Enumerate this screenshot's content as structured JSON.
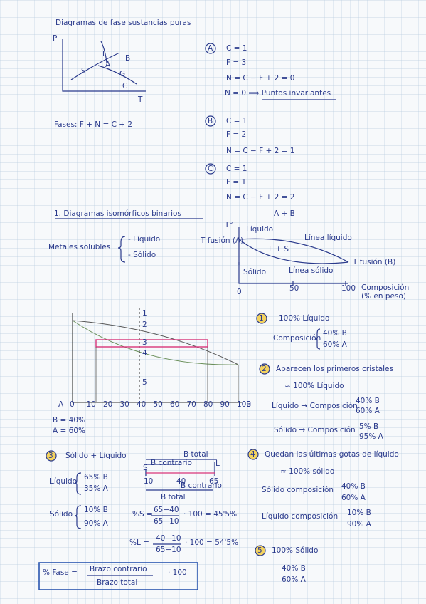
{
  "title": "Diagramas de fase sustancias puras",
  "phase_diagram": {
    "p": "P",
    "t": "T",
    "l": "L",
    "b": "B",
    "a": "A",
    "s": "S",
    "g": "G",
    "c": "C"
  },
  "point_a": {
    "marker": "A",
    "lines": [
      "C = 1",
      "F = 3",
      "N = C − F + 2 = 0",
      "N = 0 ⟹ Puntos invariantes"
    ]
  },
  "phases_rule": "Fases: F + N = C + 2",
  "point_b": {
    "marker": "B",
    "lines": [
      "C = 1",
      "F = 2",
      "N = C − F + 2 = 1"
    ]
  },
  "point_c": {
    "marker": "C",
    "lines": [
      "C = 1",
      "F = 1",
      "N = C − F + 2 = 2"
    ]
  },
  "section": "1. Diagramas isomórficos binarios",
  "metals": {
    "label": "Metales solubles",
    "items": [
      "- Líquido",
      "- Sólido"
    ]
  },
  "binary_diagram": {
    "system": "A + B",
    "t_axis": "T°",
    "liquid": "Líquido",
    "tf_a": "T fusión (A)",
    "liquid_line": "Línea líquido",
    "two_phase": "L + S",
    "solid": "Sólido",
    "solid_line": "Línea sólido",
    "tf_b": "T fusión (B)",
    "x_ticks": [
      "0",
      "50",
      "100"
    ],
    "x_label": "Composición",
    "x_unit": "(% en peso)"
  },
  "cooling_diagram": {
    "points": [
      "1",
      "2",
      "3",
      "4",
      "5"
    ],
    "axis_start": "A",
    "x_ticks": [
      "0",
      "10",
      "20",
      "30",
      "40",
      "50",
      "60",
      "70",
      "80",
      "90",
      "100"
    ],
    "axis_end": "B",
    "comp": [
      "B = 40%",
      "A = 60%"
    ]
  },
  "step1": {
    "marker": "1",
    "text": "100% Líquido",
    "label": "Composición",
    "comp": [
      "40% B",
      "60% A"
    ]
  },
  "step2": {
    "marker": "2",
    "text": "Aparecen los primeros cristales",
    "sub": "≈ 100% Líquido",
    "liquid": "Líquido → Composición",
    "liquid_comp": [
      "40% B",
      "60% A"
    ],
    "solid": "Sólido → Composición",
    "solid_comp": [
      "5% B",
      "95% A"
    ]
  },
  "step3": {
    "marker": "3",
    "text": "Sólido + Líquido",
    "lever": {
      "total_top": "B total",
      "contrary_top": "B contrario",
      "s": "S",
      "l": "L",
      "ticks": [
        "10",
        "40",
        "65"
      ],
      "contrary_bottom": "B contrario",
      "total_bottom": "B total"
    },
    "liquid": "Líquido",
    "liquid_comp": [
      "65% B",
      "35% A"
    ],
    "solid": "Sólido",
    "solid_comp": [
      "10% B",
      "90% A"
    ],
    "s_calc": {
      "lhs": "%S =",
      "num": "65−40",
      "den": "65−10",
      "rhs": "· 100 = 45'5%"
    },
    "l_calc": {
      "lhs": "%L =",
      "num": "40−10",
      "den": "65−10",
      "rhs": "· 100 = 54'5%"
    }
  },
  "step4": {
    "marker": "4",
    "text": "Quedan las últimas gotas de líquido",
    "sub": "≈ 100% sólido",
    "solid": "Sólido composición",
    "solid_comp": [
      "40% B",
      "60% A"
    ],
    "liquid": "Líquido composición",
    "liquid_comp": [
      "10% B",
      "90% A"
    ]
  },
  "step5": {
    "marker": "5",
    "text": "100% Sólido",
    "comp": [
      "40% B",
      "60% A"
    ]
  },
  "formula": {
    "lhs": "% Fase =",
    "num": "Brazo contrario",
    "den": "Brazo total",
    "rhs": "· 100"
  }
}
